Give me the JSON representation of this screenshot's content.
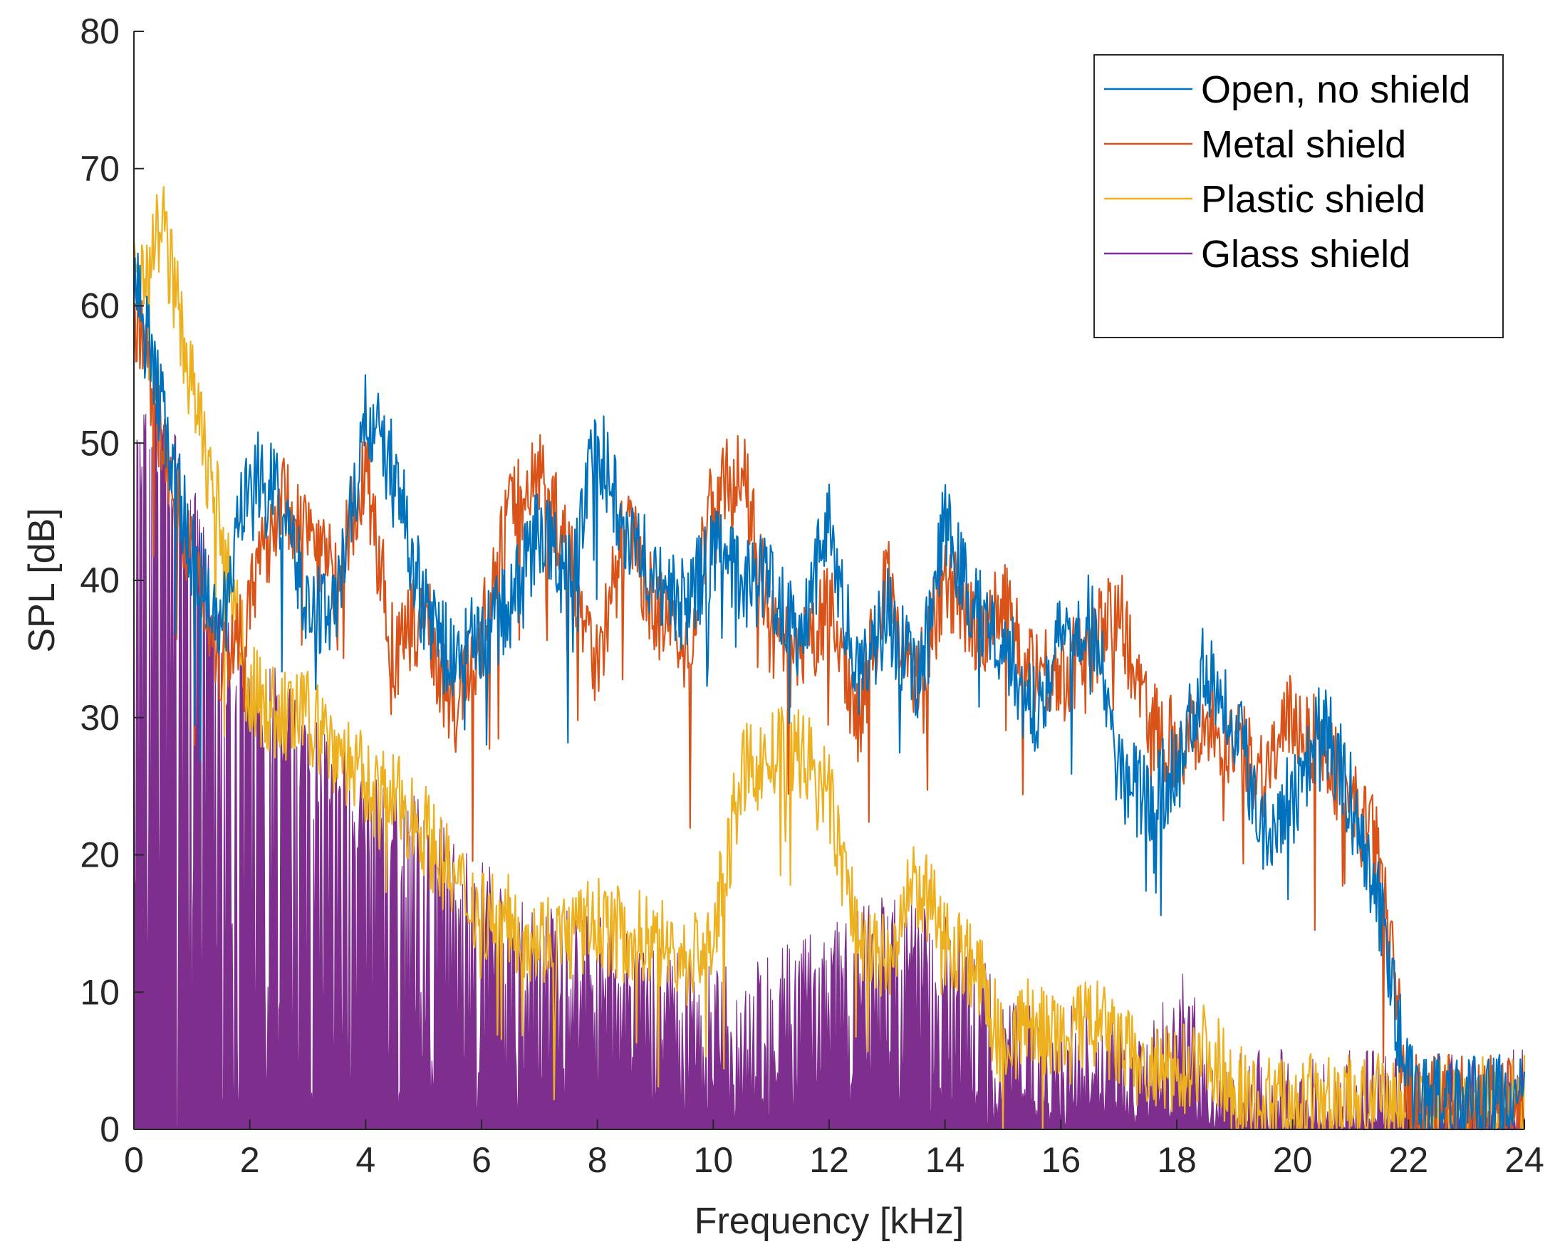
{
  "chart_data": {
    "type": "line",
    "title": "",
    "xlabel": "Frequency [kHz]",
    "ylabel": "SPL [dB]",
    "xlim": [
      0,
      24
    ],
    "ylim": [
      0,
      80
    ],
    "grid": false,
    "legend_position": "top-right",
    "x_ticks": [
      0,
      2,
      4,
      6,
      8,
      10,
      12,
      14,
      16,
      18,
      20,
      22,
      24
    ],
    "y_ticks": [
      0,
      10,
      20,
      30,
      40,
      50,
      60,
      70,
      80
    ],
    "x": [
      0,
      0.5,
      1,
      1.5,
      2,
      2.5,
      3,
      3.5,
      4,
      4.5,
      5,
      5.5,
      6,
      6.5,
      7,
      7.5,
      8,
      8.5,
      9,
      9.5,
      10,
      10.5,
      11,
      11.5,
      12,
      12.5,
      13,
      13.5,
      14,
      14.5,
      15,
      15.5,
      16,
      16.5,
      17,
      17.5,
      18,
      18.5,
      19,
      19.5,
      20,
      20.5,
      21,
      21.5,
      22,
      22.5,
      23,
      23.5,
      24
    ],
    "series": [
      {
        "name": "Open, no shield",
        "color": "#0072BD",
        "values": [
          62,
          52,
          42,
          36,
          48,
          46,
          38,
          38,
          52,
          48,
          38,
          34,
          36,
          38,
          44,
          40,
          50,
          44,
          40,
          38,
          42,
          40,
          40,
          36,
          45,
          32,
          38,
          32,
          44,
          38,
          36,
          30,
          36,
          38,
          26,
          24,
          26,
          34,
          30,
          22,
          24,
          30,
          24,
          16,
          3,
          2,
          2,
          2,
          2
        ]
      },
      {
        "name": "Metal shield",
        "color": "#D95319",
        "values": [
          60,
          50,
          42,
          34,
          38,
          46,
          44,
          40,
          48,
          34,
          38,
          30,
          36,
          45,
          48,
          42,
          34,
          44,
          38,
          34,
          46,
          48,
          36,
          34,
          38,
          30,
          40,
          32,
          40,
          36,
          38,
          34,
          33,
          35,
          38,
          30,
          28,
          30,
          28,
          26,
          30,
          28,
          24,
          20,
          2,
          2,
          2,
          2,
          2
        ]
      },
      {
        "name": "Plastic shield",
        "color": "#EDB120",
        "values": [
          62,
          66,
          54,
          44,
          32,
          30,
          30,
          28,
          25,
          24,
          22,
          18,
          16,
          15,
          14,
          14,
          15,
          14,
          14,
          12,
          14,
          26,
          27,
          28,
          24,
          14,
          12,
          18,
          14,
          12,
          6,
          8,
          6,
          8,
          6,
          4,
          4,
          6,
          3,
          2,
          2,
          2,
          2,
          2,
          2,
          2,
          2,
          2,
          2
        ]
      },
      {
        "name": "Glass shield",
        "color": "#7E2F8E",
        "values": [
          48,
          50,
          44,
          34,
          30,
          30,
          27,
          25,
          22,
          21,
          20,
          18,
          16,
          14,
          13,
          12,
          12,
          11,
          10,
          9,
          8,
          8,
          9,
          10,
          11,
          12,
          14,
          13,
          12,
          10,
          6,
          5,
          5,
          6,
          4,
          3,
          9,
          4,
          2,
          2,
          2,
          2,
          2,
          2,
          2,
          2,
          2,
          2,
          2
        ]
      }
    ]
  }
}
